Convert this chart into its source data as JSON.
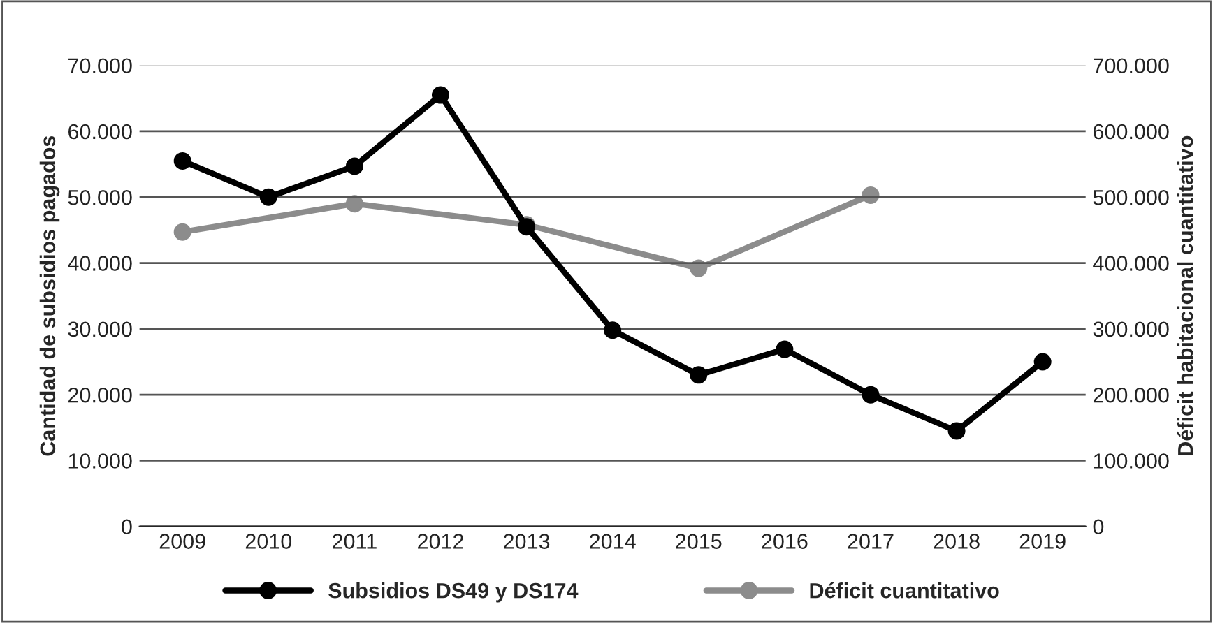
{
  "chart_data": {
    "type": "line",
    "x": [
      2009,
      2010,
      2011,
      2012,
      2013,
      2014,
      2015,
      2016,
      2017,
      2018,
      2019
    ],
    "xlim": [
      2008.5,
      2019.5
    ],
    "xticks": [
      2009,
      2010,
      2011,
      2012,
      2013,
      2014,
      2015,
      2016,
      2017,
      2018,
      2019
    ],
    "ylabel": "Cantidad de subsidios pagados",
    "y2label": "Déficit habitacional cuantitativo",
    "series": [
      {
        "name": "Subsidios DS49 y DS174",
        "color": "#000000",
        "values": [
          55500,
          50000,
          54700,
          65500,
          45500,
          29800,
          23000,
          26900,
          20000,
          14500,
          25000
        ]
      },
      {
        "name": "Déficit cuantitativo",
        "color": "#8c8c8c",
        "axis": "y2",
        "x": [
          2009,
          2011,
          2013,
          2015,
          2017
        ],
        "values": [
          447000,
          490000,
          458000,
          392000,
          503000
        ]
      }
    ],
    "ylim": [
      0,
      70000
    ],
    "yticks": [
      0,
      {
        "value": 10000,
        "label": "10.000"
      },
      {
        "value": 20000,
        "label": "20.000"
      },
      {
        "value": 30000,
        "label": "30.000"
      },
      {
        "value": 40000,
        "label": "40.000"
      },
      {
        "value": 50000,
        "label": "50.000"
      },
      {
        "value": 60000,
        "label": "60.000"
      },
      {
        "value": 70000,
        "label": "70.000"
      }
    ],
    "y2lim": [
      0,
      700000
    ],
    "y2ticks": [
      0,
      {
        "value": 100000,
        "label": "100.000"
      },
      {
        "value": 200000,
        "label": "200.000"
      },
      {
        "value": 300000,
        "label": "300.000"
      },
      {
        "value": 400000,
        "label": "400.000"
      },
      {
        "value": 500000,
        "label": "500.000"
      },
      {
        "value": 600000,
        "label": "600.000"
      },
      {
        "value": 700000,
        "label": "700.000"
      }
    ],
    "grid": "y",
    "legend": "bottom",
    "marker": "circle",
    "line_style": "solid"
  }
}
